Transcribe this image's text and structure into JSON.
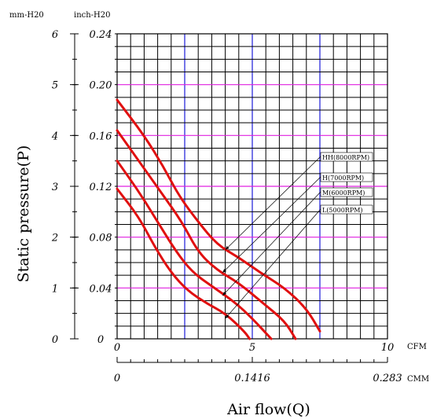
{
  "chart_data": {
    "type": "line",
    "xlabel": "Air flow(Q)",
    "ylabel": "Static pressure(P)",
    "units": {
      "y_left": "mm-H20",
      "y_right": "inch-H20",
      "x_top": "CFM",
      "x_bottom": "CMM"
    },
    "y_mm_ticks": [
      "6",
      "5",
      "4",
      "3",
      "2",
      "1",
      "0"
    ],
    "y_inch_ticks": [
      "0.24",
      "0.20",
      "0.16",
      "0.12",
      "0.08",
      "0.04",
      "0"
    ],
    "x_cfm_ticks": [
      "0",
      "5",
      "10"
    ],
    "x_cmm_ticks": [
      "0",
      "0.1416",
      "0.283"
    ],
    "xlim_cfm": [
      0,
      10
    ],
    "ylim_mm": [
      0,
      6
    ],
    "series": [
      {
        "name": "HH(8000RPM)",
        "points": [
          [
            0,
            4.7
          ],
          [
            1,
            4.0
          ],
          [
            1.7,
            3.4
          ],
          [
            2.3,
            2.8
          ],
          [
            3.0,
            2.3
          ],
          [
            3.7,
            1.85
          ],
          [
            4.5,
            1.6
          ],
          [
            5.3,
            1.3
          ],
          [
            6.2,
            1.0
          ],
          [
            7.0,
            0.6
          ],
          [
            7.5,
            0.15
          ]
        ]
      },
      {
        "name": "H(7000RPM)",
        "points": [
          [
            0,
            4.1
          ],
          [
            0.8,
            3.5
          ],
          [
            1.6,
            2.9
          ],
          [
            2.4,
            2.3
          ],
          [
            3.0,
            1.7
          ],
          [
            3.7,
            1.35
          ],
          [
            4.5,
            1.1
          ],
          [
            5.4,
            0.7
          ],
          [
            6.2,
            0.35
          ],
          [
            6.6,
            0
          ]
        ]
      },
      {
        "name": "M(6000RPM)",
        "points": [
          [
            0,
            3.5
          ],
          [
            0.8,
            2.9
          ],
          [
            1.5,
            2.3
          ],
          [
            2.2,
            1.7
          ],
          [
            2.8,
            1.3
          ],
          [
            3.6,
            1.0
          ],
          [
            4.4,
            0.7
          ],
          [
            5.0,
            0.4
          ],
          [
            5.7,
            0
          ]
        ]
      },
      {
        "name": "L(5000RPM)",
        "points": [
          [
            0,
            2.95
          ],
          [
            0.8,
            2.4
          ],
          [
            1.4,
            1.8
          ],
          [
            2.0,
            1.3
          ],
          [
            2.6,
            0.95
          ],
          [
            3.3,
            0.7
          ],
          [
            4.0,
            0.5
          ],
          [
            4.7,
            0.15
          ],
          [
            4.9,
            0
          ]
        ]
      }
    ],
    "annotations": [
      {
        "name": "HH(8000RPM)",
        "arrow_to": [
          4.0,
          1.75
        ]
      },
      {
        "name": "H(7000RPM)",
        "arrow_to": [
          3.9,
          1.3
        ]
      },
      {
        "name": "M(6000RPM)",
        "arrow_to": [
          3.9,
          0.85
        ]
      },
      {
        "name": "L(5000RPM)",
        "arrow_to": [
          4.0,
          0.4
        ]
      }
    ],
    "grid": true,
    "colors": {
      "series": "#e01010",
      "grid": "#000000",
      "major_h": "#e020e0",
      "major_v": "#1c1cd8",
      "annotation": "#000000"
    }
  }
}
